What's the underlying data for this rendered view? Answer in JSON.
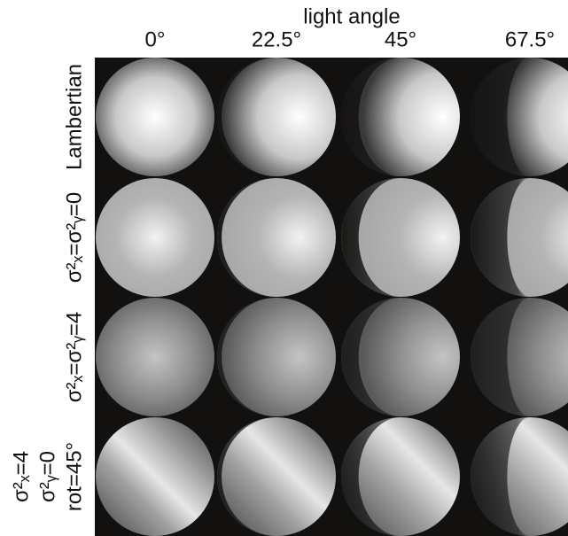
{
  "header": {
    "title": "light angle"
  },
  "columns": [
    "0°",
    "22.5°",
    "45°",
    "67.5°"
  ],
  "rows": [
    {
      "label": [
        "Lambertian"
      ]
    },
    {
      "label": [
        "σ²ₓ=σ²ᵧ=0"
      ]
    },
    {
      "label": [
        "σ²ₓ=σ²ᵧ=4"
      ]
    },
    {
      "label": [
        "σ²ₓ=4",
        "σ²ᵧ=0",
        "rot=45°"
      ]
    }
  ]
}
